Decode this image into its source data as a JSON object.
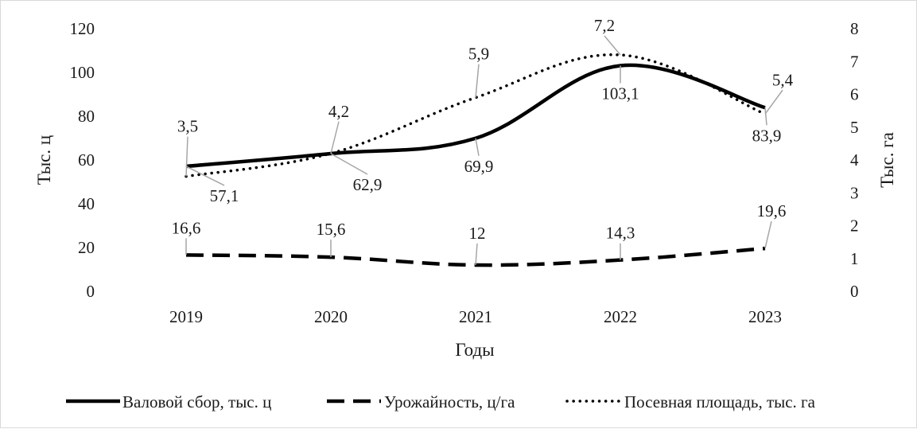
{
  "chart_data": {
    "type": "line",
    "title": "",
    "categories": [
      "2019",
      "2020",
      "2021",
      "2022",
      "2023"
    ],
    "xlabel": "Годы",
    "ylabel_left": "Тыс. ц",
    "ylabel_right": "Тыс. га",
    "ylim_left": [
      0,
      120
    ],
    "yticks_left": [
      "0",
      "20",
      "40",
      "60",
      "80",
      "100",
      "120"
    ],
    "ylim_right": [
      0,
      8
    ],
    "yticks_right": [
      "0",
      "1",
      "2",
      "3",
      "4",
      "5",
      "6",
      "7",
      "8"
    ],
    "grid": false,
    "legend_position": "bottom",
    "series": [
      {
        "name": "Валовой сбор, тыс. ц",
        "axis": "left",
        "style": "solid",
        "values": [
          57.1,
          62.9,
          69.9,
          103.1,
          83.9
        ],
        "labels": [
          "57,1",
          "62,9",
          "69,9",
          "103,1",
          "83,9"
        ]
      },
      {
        "name": "Урожайность, ц/га",
        "axis": "left",
        "style": "dashed",
        "values": [
          16.6,
          15.6,
          12,
          14.3,
          19.6
        ],
        "labels": [
          "16,6",
          "15,6",
          "12",
          "14,3",
          "19,6"
        ]
      },
      {
        "name": "Посевная площадь, тыс. га",
        "axis": "right",
        "style": "dotted",
        "values": [
          3.5,
          4.2,
          5.9,
          7.2,
          5.4
        ],
        "labels": [
          "3,5",
          "4,2",
          "5,9",
          "7,2",
          "5,4"
        ]
      }
    ],
    "line_color": "#000000"
  }
}
